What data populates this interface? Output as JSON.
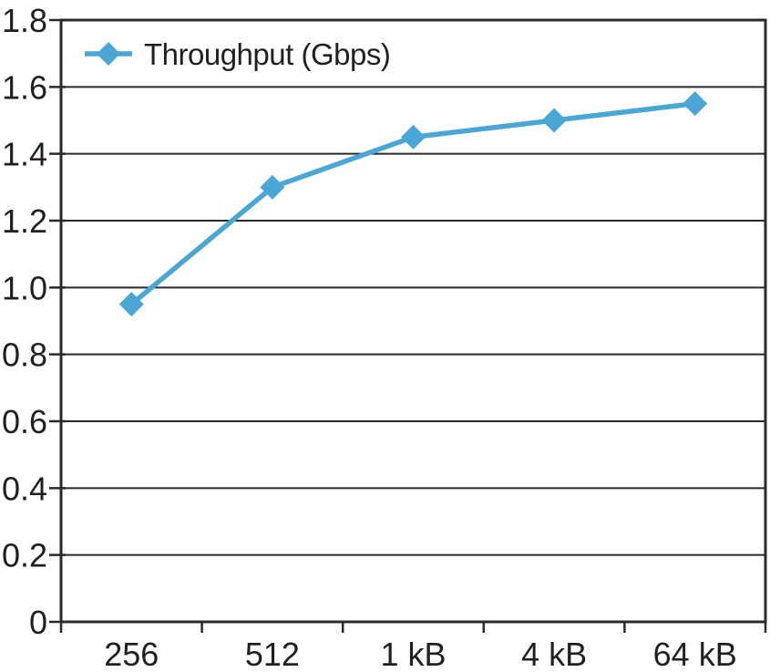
{
  "chart_data": {
    "type": "line",
    "title": "",
    "categories": [
      "256",
      "512",
      "1 kB",
      "4 kB",
      "64 kB"
    ],
    "series": [
      {
        "name": "Throughput (Gbps)",
        "values": [
          0.95,
          1.3,
          1.45,
          1.5,
          1.55
        ]
      }
    ],
    "xlabel": "",
    "ylabel": "",
    "ylim": [
      0,
      1.8
    ],
    "ytick_values": [
      0,
      0.2,
      0.4,
      0.6,
      0.8,
      1.0,
      1.2,
      1.4,
      1.6,
      1.8
    ],
    "ytick_labels": [
      "0",
      "0.2",
      "0.4",
      "0.6",
      "0.8",
      "1.0",
      "1.2",
      "1.4",
      "1.6",
      "1.8"
    ],
    "grid": true,
    "legend_position": "top-left-inside",
    "marker": "diamond",
    "colors": {
      "line": "#4aa7d5",
      "axis": "#2a2a2a",
      "grid": "#2a2a2a",
      "text": "#231f20",
      "background": "#ffffff"
    }
  }
}
